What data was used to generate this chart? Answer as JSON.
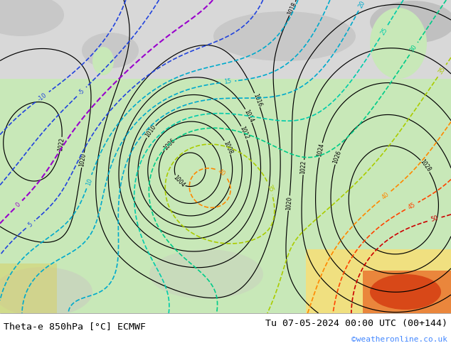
{
  "title_left": "Theta-e 850hPa [°C] ECMWF",
  "title_right": "Tu 07-05-2024 00:00 UTC (00+144)",
  "credit": "©weatheronline.co.uk",
  "title_fontsize": 9.5,
  "credit_fontsize": 8,
  "credit_color": "#4488ff",
  "bg_map": "#e8f0e8",
  "bg_grey": "#d8d8d8",
  "bg_white": "#f8f8f8",
  "land_green": "#c8e8b8",
  "pressure_lw": 0.85,
  "theta_lw": 1.2,
  "label_fontsize": 5.5
}
